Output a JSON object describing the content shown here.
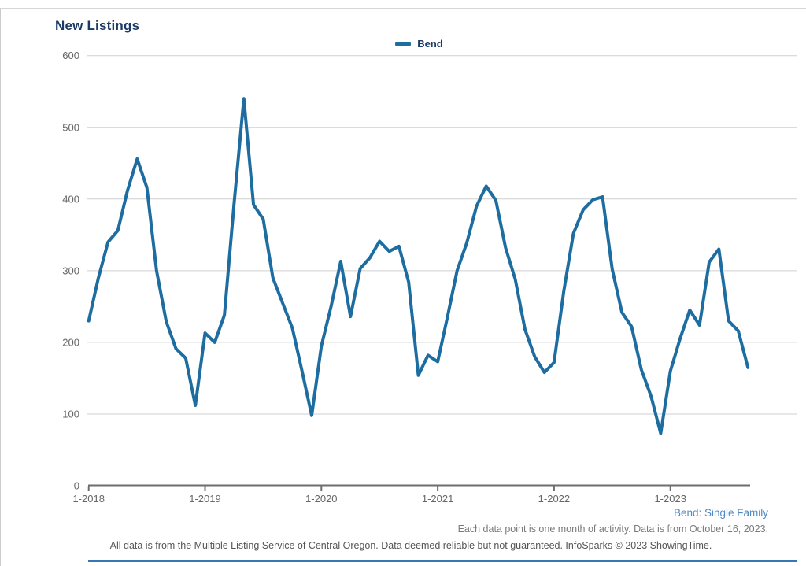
{
  "page": {
    "title": "New Listings",
    "legend": {
      "label": "Bend"
    },
    "footer": {
      "series_note": "Bend: Single Family",
      "data_note": "Each data point is one month of activity. Data is from October 16, 2023.",
      "disclaimer": "All data is from the Multiple Listing Service of Central Oregon. Data deemed reliable but not guaranteed. InfoSparks © 2023 ShowingTime."
    }
  },
  "colors": {
    "line": "#1d6da1",
    "title_text": "#1b3a66",
    "legend_text": "#1b3a66",
    "axis_text": "#666666",
    "axis_line": "#6d6d6d",
    "gridline": "#cfcfcf",
    "series_note_text": "#4f89c6",
    "data_note_text": "#7a7a7a",
    "disclaimer_text": "#555555",
    "bottom_rule": "#3577b5",
    "frame_border": "#cccccc"
  },
  "chart_data": {
    "type": "line",
    "title": "New Listings",
    "x_start": "2018-01",
    "x_end": "2023-09",
    "x_unit": "month",
    "grid": "horizontal",
    "legend_position": "top-center",
    "ylim": [
      0,
      600
    ],
    "y_ticks": [
      0,
      100,
      200,
      300,
      400,
      500,
      600
    ],
    "x_tick_labels": [
      "1-2018",
      "1-2019",
      "1-2020",
      "1-2021",
      "1-2022",
      "1-2023"
    ],
    "x_tick_month_indices": [
      0,
      12,
      24,
      36,
      48,
      60
    ],
    "series": [
      {
        "name": "Bend",
        "color": "#1d6da1",
        "values": [
          230,
          290,
          340,
          356,
          412,
          456,
          416,
          300,
          229,
          191,
          178,
          112,
          213,
          200,
          238,
          395,
          540,
          392,
          372,
          290,
          255,
          220,
          160,
          98,
          195,
          250,
          313,
          236,
          303,
          318,
          341,
          327,
          334,
          284,
          154,
          182,
          173,
          235,
          300,
          339,
          390,
          418,
          398,
          332,
          288,
          218,
          180,
          158,
          172,
          271,
          352,
          385,
          399,
          403,
          302,
          242,
          222,
          162,
          125,
          73,
          160,
          205,
          245,
          224,
          312,
          330,
          230,
          216,
          165
        ]
      }
    ]
  }
}
